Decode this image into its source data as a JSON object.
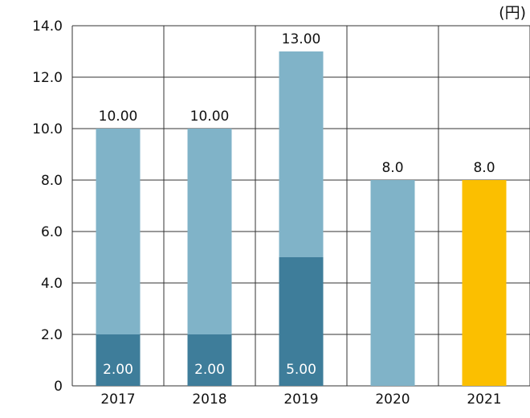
{
  "chart_data": {
    "type": "bar",
    "unit_label": "(円)",
    "categories": [
      "2017",
      "2018",
      "2019",
      "2020",
      "2021"
    ],
    "ylim": [
      0,
      14
    ],
    "y_ticks": [
      "0",
      "2.0",
      "4.0",
      "6.0",
      "8.0",
      "10.0",
      "12.0",
      "14.0"
    ],
    "y_tick_values": [
      0,
      2,
      4,
      6,
      8,
      10,
      12,
      14
    ],
    "grid": true,
    "stacked": true,
    "series": [
      {
        "values": [
          2,
          2,
          5,
          0,
          0
        ],
        "labels": [
          "2.00",
          "2.00",
          "5.00",
          "",
          ""
        ]
      },
      {
        "values": [
          8,
          8,
          8,
          8,
          0
        ],
        "labels": [
          "",
          "",
          "",
          "",
          ""
        ]
      },
      {
        "values": [
          0,
          0,
          0,
          0,
          8
        ],
        "labels": [
          "",
          "",
          "",
          "",
          ""
        ]
      }
    ],
    "totals": [
      10,
      10,
      13,
      8,
      8
    ],
    "total_labels": [
      "10.00",
      "10.00",
      "13.00",
      "8.0",
      "8.0"
    ],
    "colors": {
      "bar_dark": "#3e7d9a",
      "bar_light": "#80b3c8",
      "bar_highlight": "#fbbf00",
      "grid": "#333333",
      "text": "#111111",
      "inner_label": "#ffffff"
    }
  }
}
